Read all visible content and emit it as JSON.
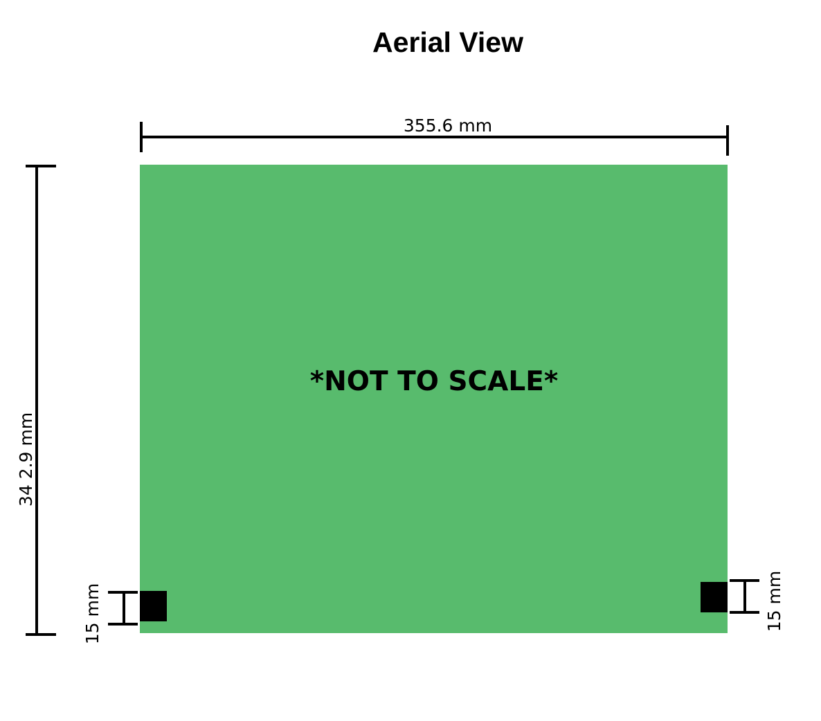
{
  "title": "Aerial View",
  "width_label": "355.6 mm",
  "height_label": "34 2.9 mm",
  "note": "*NOT TO SCALE*",
  "left_marker_label": "15 mm",
  "right_marker_label": "15 mm",
  "colors": {
    "board": "#58bb6d",
    "marker": "#000000",
    "dimension_line": "#000000"
  }
}
